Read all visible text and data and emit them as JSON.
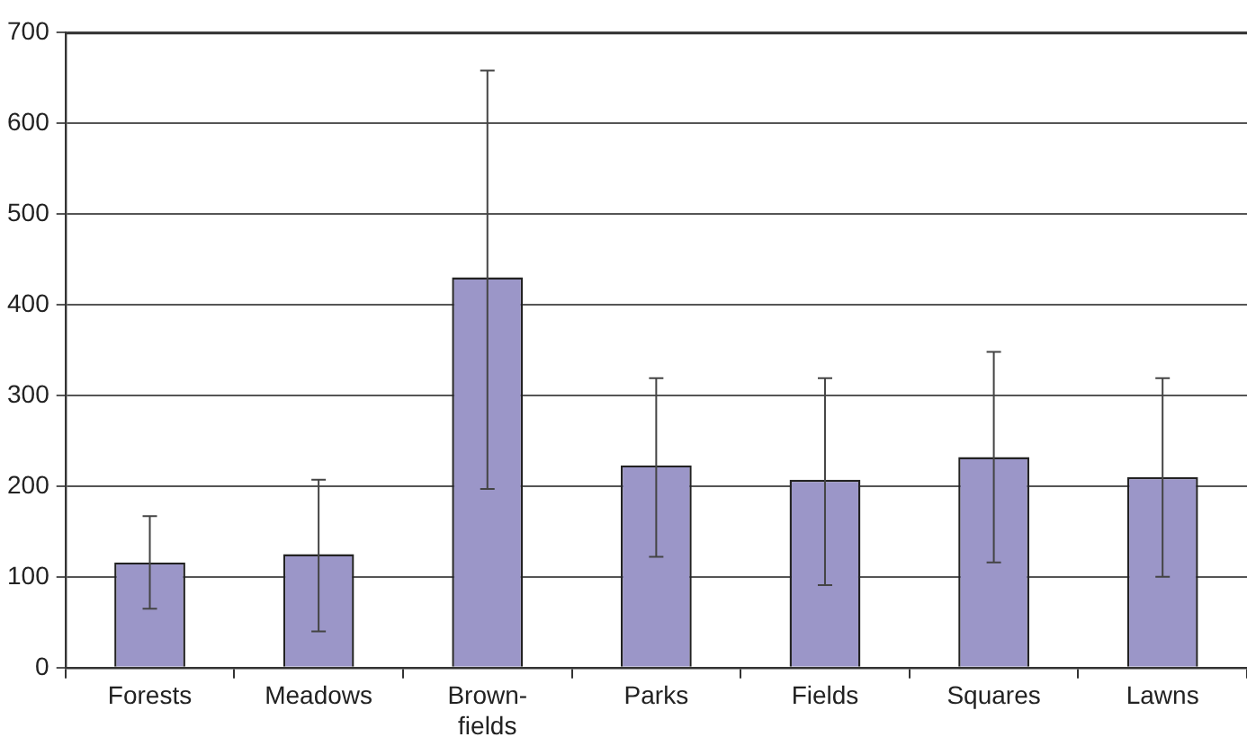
{
  "chart_data": {
    "type": "bar",
    "categories": [
      "Forests",
      "Meadows",
      "Brown-\nfields",
      "Parks",
      "Fields",
      "Squares",
      "Lawns"
    ],
    "values": [
      116,
      125,
      430,
      223,
      207,
      232,
      210
    ],
    "errors": [
      [
        65,
        167
      ],
      [
        40,
        207
      ],
      [
        197,
        658
      ],
      [
        122,
        319
      ],
      [
        91,
        319
      ],
      [
        116,
        348
      ],
      [
        100,
        319
      ]
    ],
    "color": "#9b96c8",
    "ylim": [
      0,
      700
    ],
    "yticks": [
      0,
      100,
      200,
      300,
      400,
      500,
      600,
      700
    ],
    "grid": "y",
    "legend": false
  }
}
